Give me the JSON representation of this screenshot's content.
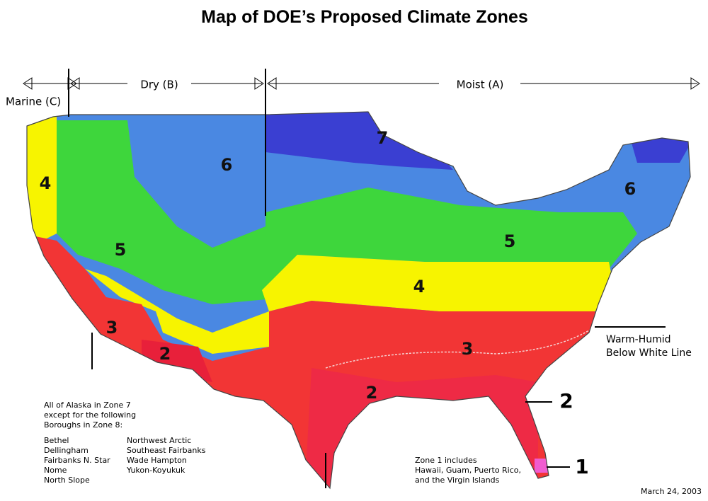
{
  "title": "Map of DOE’s Proposed Climate Zones",
  "regions": {
    "marine": "Marine (C)",
    "dry": "Dry (B)",
    "moist": "Moist (A)"
  },
  "zone_labels": [
    "4",
    "6",
    "5",
    "3",
    "2",
    "7",
    "6",
    "5",
    "4",
    "3",
    "2",
    "2",
    "1"
  ],
  "warm_humid": [
    "Warm-Humid",
    "Below White Line"
  ],
  "alaska_note": {
    "intro": [
      "All of Alaska in Zone 7",
      "except for the following",
      "Boroughs in Zone 8:"
    ],
    "boroughs": [
      "Bethel",
      "Dellingham",
      "Fairbanks N. Star",
      "Nome",
      "North Slope",
      "Northwest Arctic",
      "Southeast Fairbanks",
      "Wade Hampton",
      "Yukon-Koyukuk"
    ]
  },
  "zone1_note": [
    "Zone 1 includes",
    "Hawaii, Guam, Puerto Rico,",
    "and the Virgin Islands"
  ],
  "date": "March 24, 2003"
}
